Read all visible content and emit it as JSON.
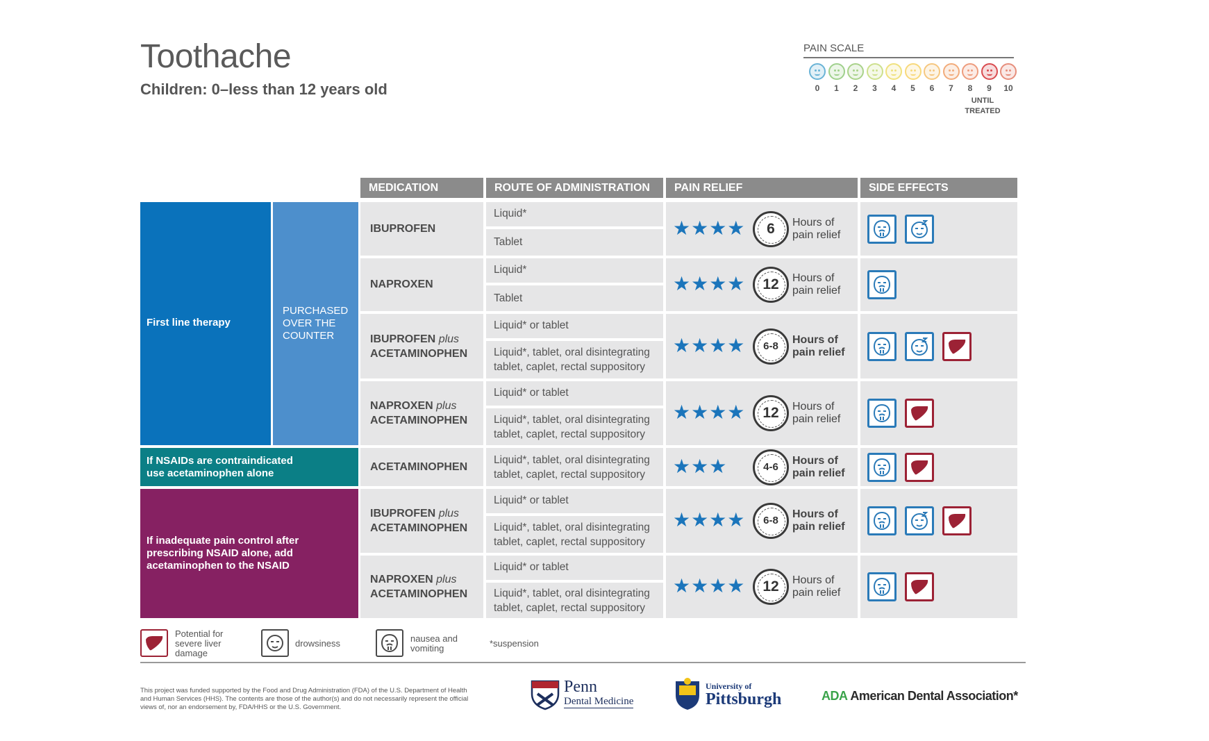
{
  "title": "Toothache",
  "subtitle": "Children: 0–less than 12 years old",
  "pain_scale": {
    "label": "PAIN SCALE",
    "numbers": [
      "0",
      "1",
      "2",
      "3",
      "4",
      "5",
      "6",
      "7",
      "8",
      "9",
      "10"
    ],
    "colors": [
      "#69b3d6",
      "#9fd08c",
      "#a9d28a",
      "#cde08d",
      "#f0e17e",
      "#f8d97b",
      "#f6c77f",
      "#f2ab7a",
      "#ee9c7d",
      "#d94b4f",
      "#e68d7b"
    ],
    "until": "UNTIL",
    "treated": "TREATED"
  },
  "headers": {
    "medication": "MEDICATION",
    "route": "ROUTE OF ADMINISTRATION",
    "relief": "PAIN RELIEF",
    "side_effects": "SIDE EFFECTS"
  },
  "groups": {
    "first_line": "First line therapy",
    "otc_1": "PURCHASED",
    "otc_2": "OVER THE",
    "otc_3": "COUNTER",
    "nsaid_1": "If NSAIDs are contraindicated",
    "nsaid_2": "use acetaminophen alone",
    "inadequate_1": "If inadequate pain control after",
    "inadequate_2": "prescribing NSAID alone, add",
    "inadequate_3": "acetaminophen to the NSAID",
    "colors": {
      "first_line": "#0a72bb",
      "otc": "#4d8fcc",
      "nsaid": "#0b7f86",
      "inadequate": "#862162"
    }
  },
  "rows": [
    {
      "med1": "IBUPROFEN",
      "med2": "",
      "plus": "",
      "route_a": "Liquid*",
      "route_b1": "Tablet",
      "route_b2": "",
      "stars": "★★★★",
      "hours": "6",
      "hours_l1": "Hours of",
      "hours_l2": "pain relief"
    },
    {
      "med1": "NAPROXEN",
      "med2": "",
      "plus": "",
      "route_a": "Liquid*",
      "route_b1": "Tablet",
      "route_b2": "",
      "stars": "★★★★",
      "hours": "12",
      "hours_l1": "Hours of",
      "hours_l2": "pain relief"
    },
    {
      "med1": "IBUPROFEN",
      "plus": "plus",
      "med2": "ACETAMINOPHEN",
      "route_a": "Liquid* or tablet",
      "route_b1": "Liquid*, tablet, oral disintegrating",
      "route_b2": "tablet, caplet, rectal suppository",
      "stars": "★★★★",
      "hours": "6-8",
      "hours_l1": "Hours of",
      "hours_l2": "pain relief"
    },
    {
      "med1": "NAPROXEN",
      "plus": "plus",
      "med2": "ACETAMINOPHEN",
      "route_a": "Liquid* or tablet",
      "route_b1": "Liquid*, tablet, oral disintegrating",
      "route_b2": "tablet, caplet, rectal suppository",
      "stars": "★★★★",
      "hours": "12",
      "hours_l1": "Hours of",
      "hours_l2": "pain relief"
    },
    {
      "med1": "ACETAMINOPHEN",
      "plus": "",
      "med2": "",
      "route_a": "",
      "route_b1": "Liquid*, tablet, oral disintegrating",
      "route_b2": "tablet, caplet, rectal suppository",
      "stars": "★★★",
      "hours": "4-6",
      "hours_l1": "Hours of",
      "hours_l2": "pain relief"
    },
    {
      "med1": "IBUPROFEN",
      "plus": "plus",
      "med2": "ACETAMINOPHEN",
      "route_a": "Liquid* or tablet",
      "route_b1": "Liquid*, tablet, oral disintegrating",
      "route_b2": "tablet, caplet, rectal suppository",
      "stars": "★★★★",
      "hours": "6-8",
      "hours_l1": "Hours of",
      "hours_l2": "pain relief"
    },
    {
      "med1": "NAPROXEN",
      "plus": "plus",
      "med2": "ACETAMINOPHEN",
      "route_a": "Liquid* or tablet",
      "route_b1": "Liquid*, tablet, oral disintegrating",
      "route_b2": "tablet, caplet, rectal suppository",
      "stars": "★★★★",
      "hours": "12",
      "hours_l1": "Hours of",
      "hours_l2": "pain relief"
    }
  ],
  "side_effect_icons": [
    "nausea-icon",
    "drowsiness-icon",
    "liver-icon"
  ],
  "legend": {
    "liver_1": "Potential for",
    "liver_2": "severe liver",
    "liver_3": "damage",
    "drowsiness": "drowsiness",
    "nausea_1": "nausea and",
    "nausea_2": "vomiting",
    "suspension": "*suspension"
  },
  "footnote": "This project was funded supported by the Food and Drug Administration (FDA) of the U.S. Department of Health and Human Services (HHS). The contents are those of the author(s) and do not necessarily represent the official views of, nor an endorsement by, FDA/HHS or the U.S. Government.",
  "logos": {
    "penn_1": "Penn",
    "penn_2": "Dental Medicine",
    "pitt_1": "University of",
    "pitt_2": "Pittsburgh",
    "ada_abbr": "ADA",
    "ada_name": " American Dental Association*"
  }
}
